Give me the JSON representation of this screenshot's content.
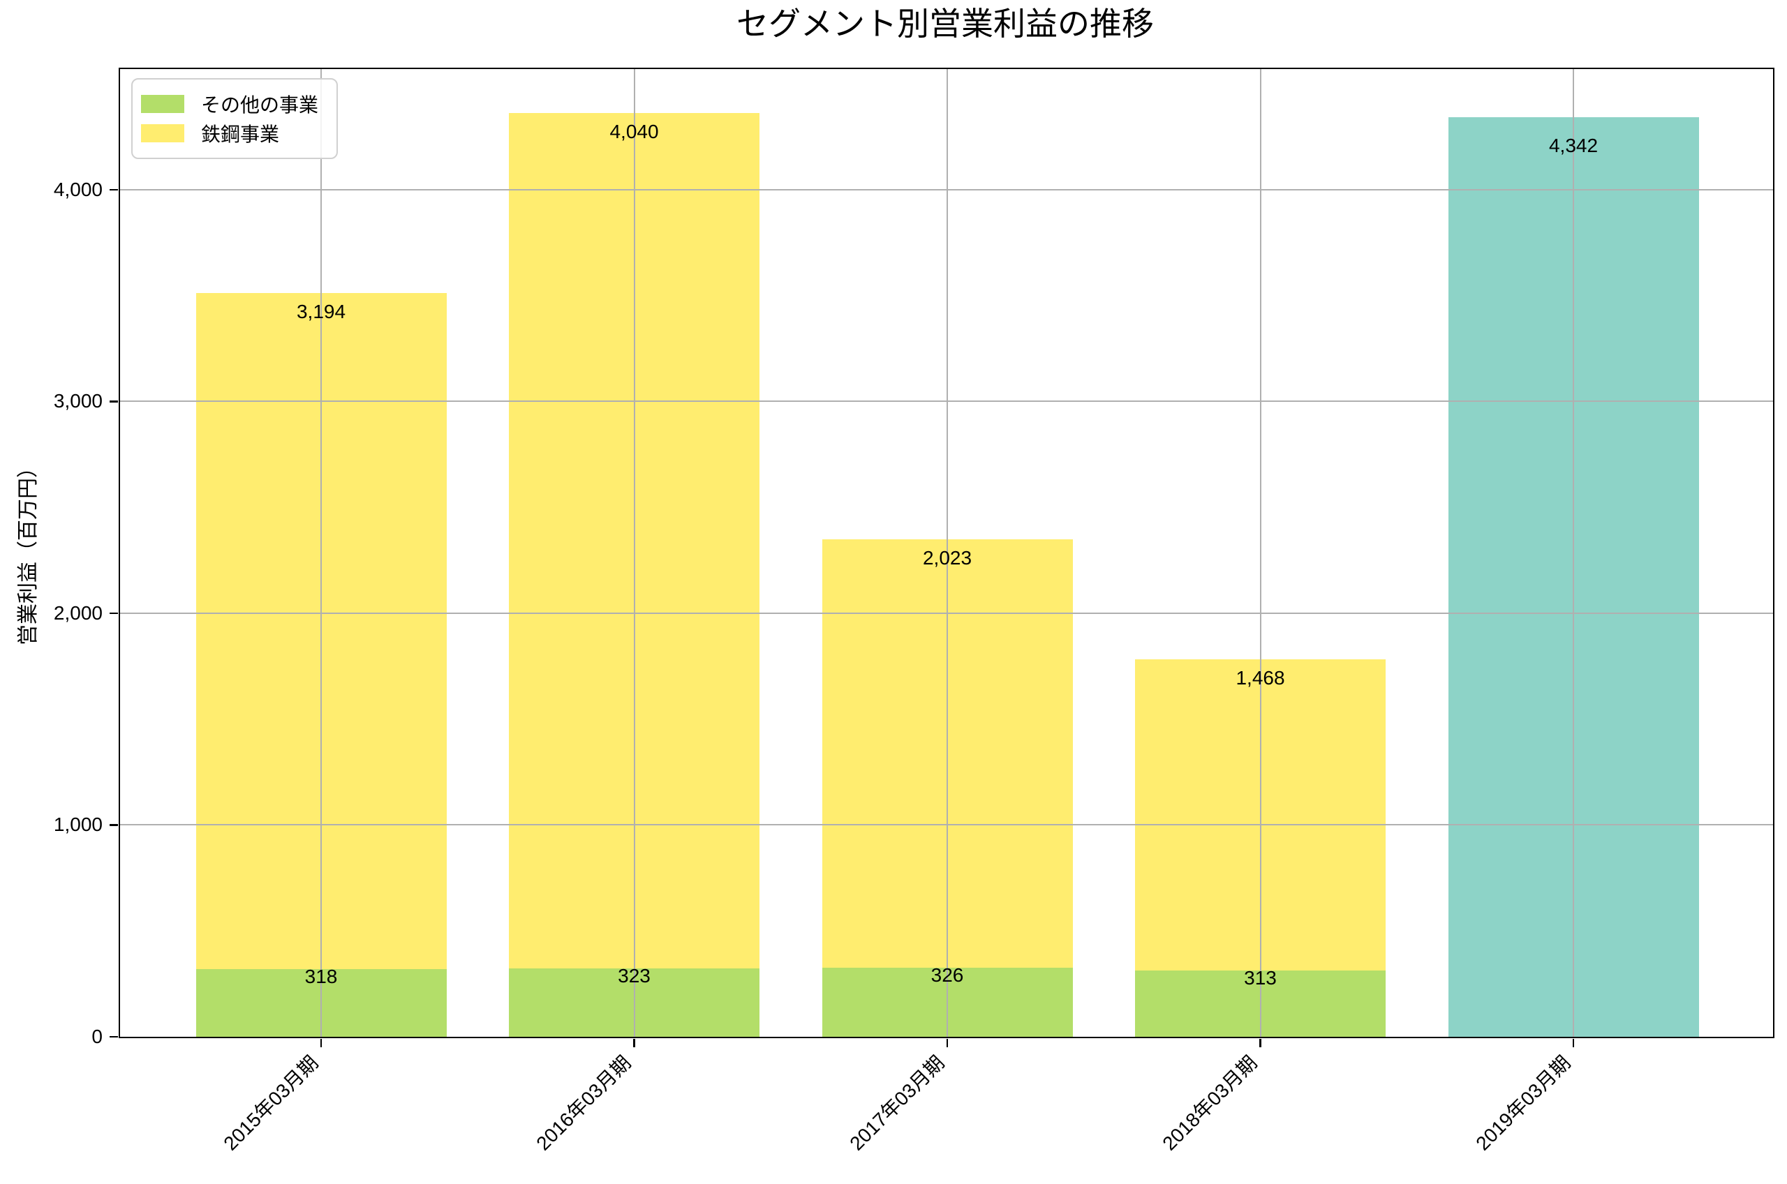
{
  "chart_data": {
    "type": "bar",
    "stacked": true,
    "title": "セグメント別営業利益の推移",
    "xlabel": "",
    "ylabel": "営業利益（百万円）",
    "categories": [
      "2015年03月期",
      "2016年03月期",
      "2017年03月期",
      "2018年03月期",
      "2019年03月期"
    ],
    "series": [
      {
        "name": "その他の事業",
        "color": "#b3de69",
        "in_legend": true,
        "values": [
          318,
          323,
          326,
          313,
          null
        ],
        "labels": [
          "318",
          "323",
          "326",
          "313",
          null
        ]
      },
      {
        "name": "鉄鋼事業",
        "color": "#ffed6f",
        "in_legend": true,
        "values": [
          3194,
          4040,
          2023,
          1468,
          null
        ],
        "labels": [
          "3,194",
          "4,040",
          "2,023",
          "1,468",
          null
        ]
      },
      {
        "name": "",
        "color": "#8dd3c7",
        "in_legend": false,
        "values": [
          null,
          null,
          null,
          null,
          4342
        ],
        "labels": [
          null,
          null,
          null,
          null,
          "4,342"
        ]
      }
    ],
    "bar_totals": [
      3512,
      4363,
      2349,
      1781,
      4342
    ],
    "y_ticks": [
      {
        "value": 0,
        "label": "0"
      },
      {
        "value": 1000,
        "label": "1,000"
      },
      {
        "value": 2000,
        "label": "2,000"
      },
      {
        "value": 3000,
        "label": "3,000"
      },
      {
        "value": 4000,
        "label": "4,000"
      }
    ],
    "ylim": [
      0,
      4570
    ],
    "grid": true,
    "grid_color": "#b0b0b0",
    "grid_above_bars": true,
    "legend_position": "upper-left",
    "legend_entries": [
      "その他の事業",
      "鉄鋼事業"
    ],
    "colors": {
      "other_business": "#b3de69",
      "steel_business": "#ffed6f",
      "unlabeled_2019": "#8dd3c7"
    }
  }
}
